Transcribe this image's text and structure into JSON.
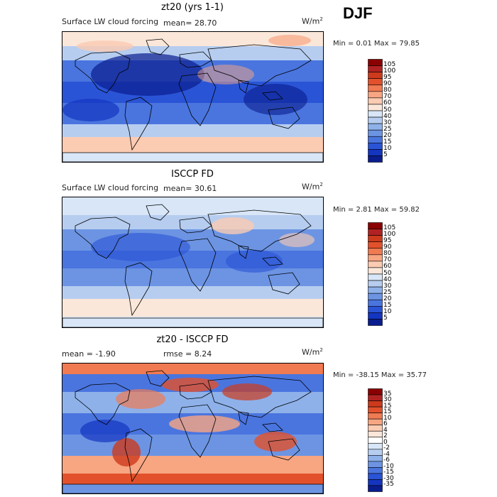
{
  "season": "DJF",
  "units": "W/m",
  "units_sup": "2",
  "panels": [
    {
      "title": "zt20 (yrs 1-1)",
      "left_label": "Surface LW cloud forcing",
      "mean_text": "mean=  28.70",
      "min_max": "Min =   0.01 Max =  79.85",
      "colorbar_labels": [
        "105",
        "100",
        "95",
        "90",
        "80",
        "70",
        "60",
        "50",
        "40",
        "30",
        "25",
        "20",
        "15",
        "10",
        "5"
      ],
      "colors": [
        "#8b0000",
        "#b22222",
        "#cd3a1c",
        "#e2512b",
        "#f07a52",
        "#f8a582",
        "#fbcbb2",
        "#fae7d9",
        "#d8e6f7",
        "#b6cdf0",
        "#8eb1ea",
        "#6c94e3",
        "#4a75df",
        "#2a54d6",
        "#1435c0",
        "#0a1d8e"
      ]
    },
    {
      "title": "ISCCP FD",
      "left_label": "Surface LW cloud forcing",
      "mean_text": "mean=  30.61",
      "min_max": "Min =   2.81 Max =  59.82",
      "colorbar_labels": [
        "105",
        "100",
        "95",
        "90",
        "80",
        "70",
        "60",
        "50",
        "40",
        "30",
        "25",
        "20",
        "15",
        "10",
        "5"
      ],
      "colors": [
        "#8b0000",
        "#b22222",
        "#cd3a1c",
        "#e2512b",
        "#f07a52",
        "#f8a582",
        "#fbcbb2",
        "#fae7d9",
        "#d8e6f7",
        "#b6cdf0",
        "#8eb1ea",
        "#6c94e3",
        "#4a75df",
        "#2a54d6",
        "#1435c0",
        "#0a1d8e"
      ]
    },
    {
      "title": "zt20 - ISCCP FD",
      "left_label": "",
      "mean_text": "mean =  -1.90",
      "rmse_text": "rmse =   8.24",
      "min_max": "Min = -38.15 Max =  35.77",
      "colorbar_labels": [
        "35",
        "30",
        "15",
        "15",
        "10",
        "6",
        "4",
        "2",
        "0",
        "-2",
        "-4",
        "-6",
        "-10",
        "-15",
        "-30",
        "-35"
      ],
      "colors": [
        "#8b0000",
        "#b22222",
        "#cd3a1c",
        "#e2512b",
        "#f07a52",
        "#f8a582",
        "#fbcbb2",
        "#fae7d9",
        "#ffffff",
        "#d8e6f7",
        "#b6cdf0",
        "#8eb1ea",
        "#6c94e3",
        "#4a75df",
        "#2a54d6",
        "#1435c0",
        "#0a1d8e"
      ]
    }
  ],
  "chart_data": [
    {
      "type": "heatmap",
      "title": "zt20 (yrs 1-1)",
      "subtitle": "Surface LW cloud forcing",
      "mean": 28.7,
      "min": 0.01,
      "max": 79.85,
      "units": "W/m2",
      "colorbar_levels": [
        5,
        10,
        15,
        20,
        25,
        30,
        40,
        50,
        60,
        70,
        80,
        90,
        95,
        100,
        105
      ]
    },
    {
      "type": "heatmap",
      "title": "ISCCP FD",
      "subtitle": "Surface LW cloud forcing",
      "mean": 30.61,
      "min": 2.81,
      "max": 59.82,
      "units": "W/m2",
      "colorbar_levels": [
        5,
        10,
        15,
        20,
        25,
        30,
        40,
        50,
        60,
        70,
        80,
        90,
        95,
        100,
        105
      ]
    },
    {
      "type": "heatmap",
      "title": "zt20 - ISCCP FD",
      "mean": -1.9,
      "rmse": 8.24,
      "min": -38.15,
      "max": 35.77,
      "units": "W/m2",
      "colorbar_levels": [
        -35,
        -30,
        -15,
        -10,
        -6,
        -4,
        -2,
        0,
        2,
        4,
        6,
        10,
        15,
        15,
        30,
        35
      ]
    }
  ]
}
